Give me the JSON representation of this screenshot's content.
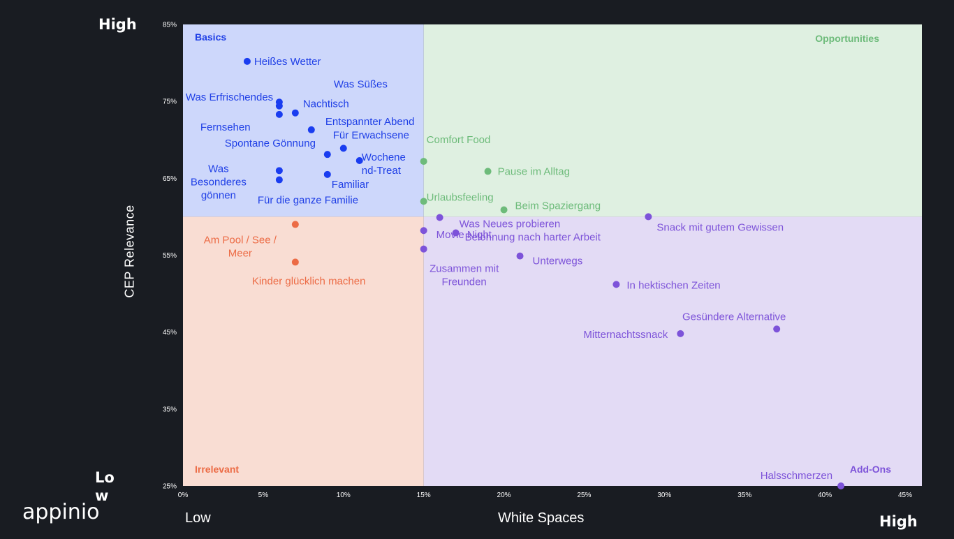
{
  "brand": {
    "logo_text": "appinio"
  },
  "corners": {
    "y_high": "High",
    "y_low": "Low",
    "x_low": "Low",
    "x_high": "High"
  },
  "colors": {
    "background": "#191c22",
    "basics_fill": "#cdd7fb",
    "basics_text": "#1f3fe6",
    "opportunities_fill": "#dff0e1",
    "opportunities_text": "#6dbb7a",
    "irrelevant_fill": "#f9ddd3",
    "irrelevant_text": "#ec6b45",
    "addons_fill": "#e3dbf5",
    "addons_text": "#7d53d9"
  },
  "chart_data": {
    "type": "scatter",
    "xlabel": "White Spaces",
    "ylabel": "CEP Relevance",
    "xlim": [
      0,
      45
    ],
    "ylim": [
      25,
      85
    ],
    "x_ticks": [
      "0%",
      "5%",
      "10%",
      "15%",
      "20%",
      "25%",
      "30%",
      "35%",
      "40%",
      "45%"
    ],
    "y_ticks": [
      "25%",
      "35%",
      "45%",
      "55%",
      "65%",
      "75%",
      "85%"
    ],
    "quadrants": [
      {
        "name": "Basics",
        "x_range": [
          0,
          15
        ],
        "y_range": [
          60,
          85
        ],
        "color": "#cdd7fb",
        "text_color": "#1f3fe6"
      },
      {
        "name": "Opportunities",
        "x_range": [
          15,
          45
        ],
        "y_range": [
          60,
          85
        ],
        "color": "#dff0e1",
        "text_color": "#6dbb7a"
      },
      {
        "name": "Irrelevant",
        "x_range": [
          0,
          15
        ],
        "y_range": [
          25,
          60
        ],
        "color": "#f9ddd3",
        "text_color": "#ec6b45"
      },
      {
        "name": "Add-Ons",
        "x_range": [
          15,
          45
        ],
        "y_range": [
          25,
          60
        ],
        "color": "#e3dbf5",
        "text_color": "#7d53d9"
      }
    ],
    "points": [
      {
        "label": "Heißes Wetter",
        "x": 4,
        "y": 80.2,
        "group": "Basics"
      },
      {
        "label": "Was Süßes",
        "x": 6,
        "y": 74.9,
        "group": "Basics"
      },
      {
        "label": "Was Erfrischendes",
        "x": 6,
        "y": 74.4,
        "group": "Basics"
      },
      {
        "label": "Nachtisch",
        "x": 7,
        "y": 73.5,
        "group": "Basics"
      },
      {
        "label": "Fernsehen",
        "x": 6,
        "y": 73.3,
        "group": "Basics"
      },
      {
        "label": "Entspannter Abend",
        "x": 8,
        "y": 71.3,
        "group": "Basics"
      },
      {
        "label": "Für Erwachsene",
        "x": 10,
        "y": 68.9,
        "group": "Basics"
      },
      {
        "label": "Spontane Gönnung",
        "x": 9,
        "y": 68.1,
        "group": "Basics"
      },
      {
        "label": "Wochenend-Treat",
        "x": 11,
        "y": 67.3,
        "group": "Basics"
      },
      {
        "label": "Was Besonderes gönnen",
        "x": 6,
        "y": 66.0,
        "group": "Basics"
      },
      {
        "label": "Familiar",
        "x": 9,
        "y": 65.5,
        "group": "Basics"
      },
      {
        "label": "Für die ganze Familie",
        "x": 6,
        "y": 64.8,
        "group": "Basics"
      },
      {
        "label": "Comfort Food",
        "x": 15,
        "y": 67.2,
        "group": "Opportunities"
      },
      {
        "label": "Pause im Alltag",
        "x": 19,
        "y": 65.9,
        "group": "Opportunities"
      },
      {
        "label": "Urlaubsfeeling",
        "x": 15,
        "y": 62.0,
        "group": "Opportunities"
      },
      {
        "label": "Beim Spaziergang",
        "x": 20,
        "y": 60.9,
        "group": "Opportunities"
      },
      {
        "label": "Am Pool / See / Meer",
        "x": 7,
        "y": 59.0,
        "group": "Irrelevant"
      },
      {
        "label": "Kinder glücklich machen",
        "x": 7,
        "y": 54.1,
        "group": "Irrelevant"
      },
      {
        "label": "Was Neues probieren",
        "x": 16,
        "y": 59.9,
        "group": "Add-Ons"
      },
      {
        "label": "Snack mit gutem Gewissen",
        "x": 29,
        "y": 60.0,
        "group": "Add-Ons"
      },
      {
        "label": "Belohnung nach harter Arbeit",
        "x": 17,
        "y": 57.9,
        "group": "Add-Ons"
      },
      {
        "label": "Movie Night",
        "x": 15,
        "y": 58.2,
        "group": "Add-Ons"
      },
      {
        "label": "Zusammen mit Freunden",
        "x": 15,
        "y": 55.8,
        "group": "Add-Ons"
      },
      {
        "label": "Unterwegs",
        "x": 21,
        "y": 54.9,
        "group": "Add-Ons"
      },
      {
        "label": "In hektischen Zeiten",
        "x": 27,
        "y": 51.2,
        "group": "Add-Ons"
      },
      {
        "label": "Gesündere Alternative",
        "x": 37,
        "y": 45.4,
        "group": "Add-Ons"
      },
      {
        "label": "Mitternachtssnack",
        "x": 31,
        "y": 44.8,
        "group": "Add-Ons"
      },
      {
        "label": "Halsschmerzen",
        "x": 41,
        "y": 25.0,
        "group": "Add-Ons"
      }
    ]
  }
}
